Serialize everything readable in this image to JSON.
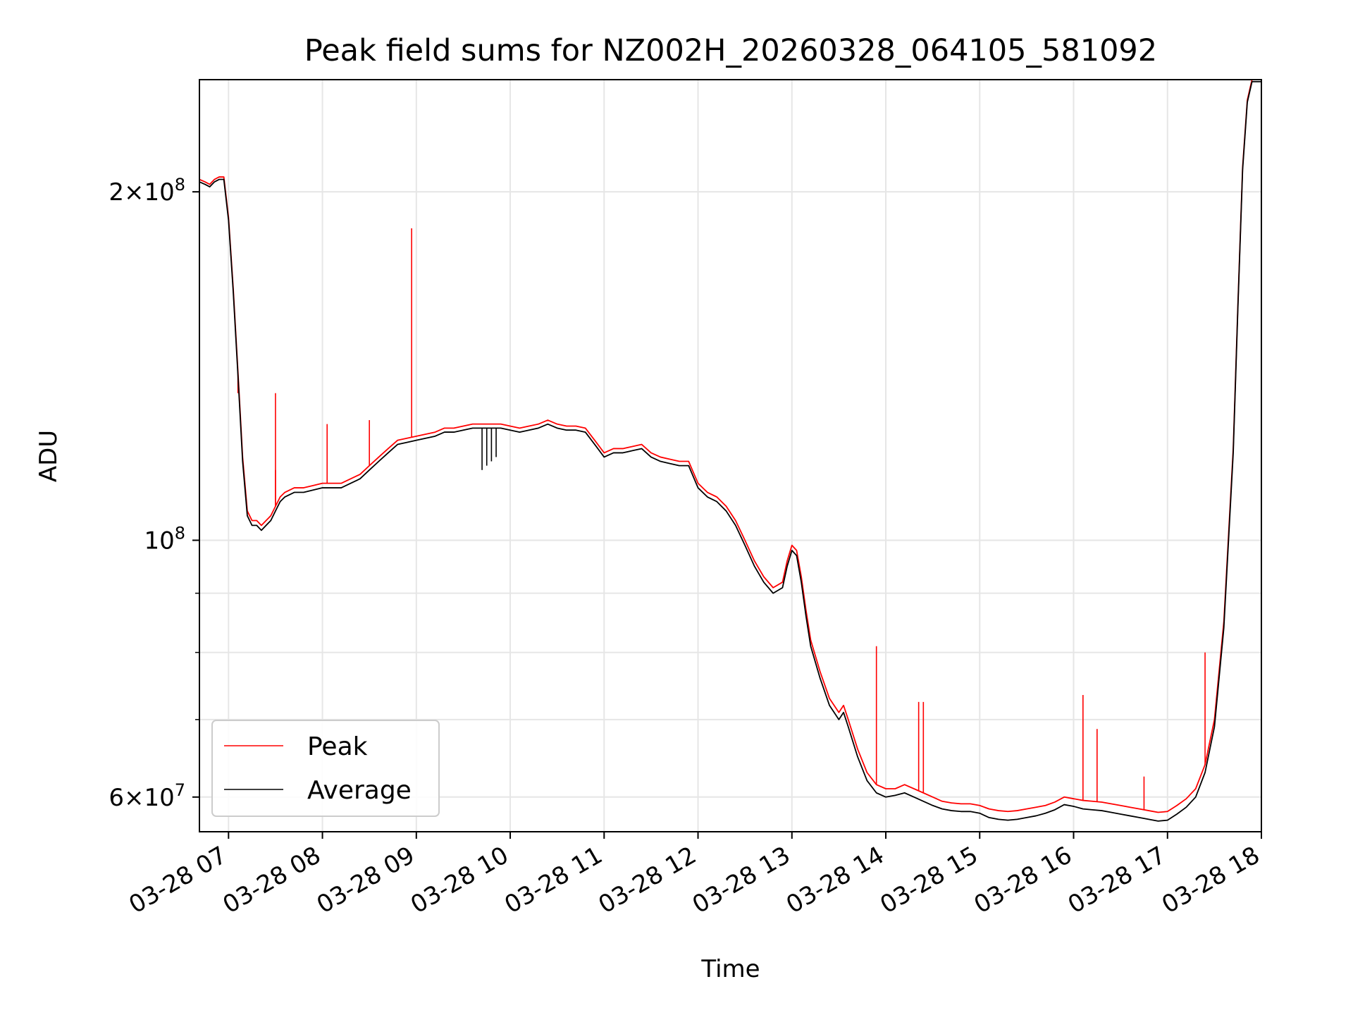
{
  "chart_data": {
    "type": "line",
    "title": "Peak field sums for NZ002H_20260328_064105_581092",
    "xlabel": "Time",
    "ylabel": "ADU",
    "yscale": "log",
    "ylim": [
      56000000,
      250000000
    ],
    "xlim_hours": [
      6.69,
      18.0
    ],
    "grid": true,
    "legend_position": "lower-left",
    "x_ticks": [
      {
        "value": 7,
        "label": "03-28 07"
      },
      {
        "value": 8,
        "label": "03-28 08"
      },
      {
        "value": 9,
        "label": "03-28 09"
      },
      {
        "value": 10,
        "label": "03-28 10"
      },
      {
        "value": 11,
        "label": "03-28 11"
      },
      {
        "value": 12,
        "label": "03-28 12"
      },
      {
        "value": 13,
        "label": "03-28 13"
      },
      {
        "value": 14,
        "label": "03-28 14"
      },
      {
        "value": 15,
        "label": "03-28 15"
      },
      {
        "value": 16,
        "label": "03-28 16"
      },
      {
        "value": 17,
        "label": "03-28 17"
      },
      {
        "value": 18,
        "label": "03-28 18"
      }
    ],
    "y_ticks": [
      {
        "value": 60000000,
        "mantissa": "6",
        "exponent": "7"
      },
      {
        "value": 100000000,
        "mantissa": "",
        "exponent": "8"
      },
      {
        "value": 200000000,
        "mantissa": "2",
        "exponent": "8"
      }
    ],
    "y_minor_ticks": [
      70000000,
      80000000,
      90000000
    ],
    "series": [
      {
        "name": "Peak",
        "color": "#ff0000",
        "points": [
          [
            6.69,
            205
          ],
          [
            6.75,
            204
          ],
          [
            6.8,
            203
          ],
          [
            6.85,
            205
          ],
          [
            6.9,
            206
          ],
          [
            6.95,
            206
          ],
          [
            7.0,
            190
          ],
          [
            7.05,
            165
          ],
          [
            7.1,
            140
          ],
          [
            7.15,
            118
          ],
          [
            7.2,
            106
          ],
          [
            7.25,
            104
          ],
          [
            7.3,
            104
          ],
          [
            7.35,
            103
          ],
          [
            7.4,
            104
          ],
          [
            7.45,
            105
          ],
          [
            7.5,
            107
          ],
          [
            7.55,
            109
          ],
          [
            7.6,
            110
          ],
          [
            7.7,
            111
          ],
          [
            7.8,
            111
          ],
          [
            7.9,
            111.5
          ],
          [
            8.0,
            112
          ],
          [
            8.1,
            112
          ],
          [
            8.2,
            112
          ],
          [
            8.3,
            113
          ],
          [
            8.4,
            114
          ],
          [
            8.5,
            116
          ],
          [
            8.6,
            118
          ],
          [
            8.7,
            120
          ],
          [
            8.8,
            122
          ],
          [
            8.9,
            122.5
          ],
          [
            9.0,
            123
          ],
          [
            9.1,
            123.5
          ],
          [
            9.2,
            124
          ],
          [
            9.3,
            125
          ],
          [
            9.4,
            125
          ],
          [
            9.5,
            125.5
          ],
          [
            9.6,
            126
          ],
          [
            9.7,
            126
          ],
          [
            9.8,
            126
          ],
          [
            9.9,
            126
          ],
          [
            10.0,
            125.5
          ],
          [
            10.1,
            125
          ],
          [
            10.2,
            125.5
          ],
          [
            10.3,
            126
          ],
          [
            10.4,
            127
          ],
          [
            10.5,
            126
          ],
          [
            10.6,
            125.5
          ],
          [
            10.7,
            125.5
          ],
          [
            10.8,
            125
          ],
          [
            10.9,
            122
          ],
          [
            11.0,
            119
          ],
          [
            11.1,
            120
          ],
          [
            11.2,
            120
          ],
          [
            11.3,
            120.5
          ],
          [
            11.4,
            121
          ],
          [
            11.5,
            119
          ],
          [
            11.6,
            118
          ],
          [
            11.7,
            117.5
          ],
          [
            11.8,
            117
          ],
          [
            11.9,
            117
          ],
          [
            12.0,
            112
          ],
          [
            12.1,
            110
          ],
          [
            12.2,
            109
          ],
          [
            12.3,
            107
          ],
          [
            12.4,
            104
          ],
          [
            12.5,
            100
          ],
          [
            12.6,
            96
          ],
          [
            12.7,
            93
          ],
          [
            12.8,
            91
          ],
          [
            12.9,
            92
          ],
          [
            12.95,
            96
          ],
          [
            13.0,
            99
          ],
          [
            13.05,
            98
          ],
          [
            13.1,
            93
          ],
          [
            13.15,
            87
          ],
          [
            13.2,
            82
          ],
          [
            13.3,
            77
          ],
          [
            13.4,
            73
          ],
          [
            13.5,
            71
          ],
          [
            13.55,
            72
          ],
          [
            13.6,
            70
          ],
          [
            13.7,
            66
          ],
          [
            13.8,
            63
          ],
          [
            13.9,
            61.5
          ],
          [
            14.0,
            61
          ],
          [
            14.1,
            61
          ],
          [
            14.2,
            61.5
          ],
          [
            14.3,
            61
          ],
          [
            14.4,
            60.5
          ],
          [
            14.5,
            60
          ],
          [
            14.6,
            59.5
          ],
          [
            14.7,
            59.3
          ],
          [
            14.8,
            59.2
          ],
          [
            14.9,
            59.2
          ],
          [
            15.0,
            59
          ],
          [
            15.1,
            58.6
          ],
          [
            15.2,
            58.4
          ],
          [
            15.3,
            58.3
          ],
          [
            15.4,
            58.4
          ],
          [
            15.5,
            58.6
          ],
          [
            15.6,
            58.8
          ],
          [
            15.7,
            59
          ],
          [
            15.8,
            59.4
          ],
          [
            15.9,
            60
          ],
          [
            16.0,
            59.8
          ],
          [
            16.1,
            59.6
          ],
          [
            16.2,
            59.5
          ],
          [
            16.3,
            59.4
          ],
          [
            16.4,
            59.2
          ],
          [
            16.5,
            59
          ],
          [
            16.6,
            58.8
          ],
          [
            16.7,
            58.6
          ],
          [
            16.8,
            58.4
          ],
          [
            16.9,
            58.2
          ],
          [
            17.0,
            58.3
          ],
          [
            17.1,
            59
          ],
          [
            17.2,
            59.8
          ],
          [
            17.3,
            61
          ],
          [
            17.4,
            64
          ],
          [
            17.5,
            70
          ],
          [
            17.6,
            85
          ],
          [
            17.7,
            120
          ],
          [
            17.75,
            160
          ],
          [
            17.8,
            210
          ],
          [
            17.85,
            240
          ],
          [
            17.9,
            250
          ],
          [
            18.0,
            250
          ]
        ],
        "spikes": [
          [
            7.1,
            134
          ],
          [
            7.5,
            134
          ],
          [
            7.5,
            115
          ],
          [
            8.05,
            126
          ],
          [
            8.5,
            127
          ],
          [
            8.95,
            186
          ],
          [
            13.9,
            81
          ],
          [
            14.35,
            72.5
          ],
          [
            14.4,
            72.5
          ],
          [
            16.1,
            73.5
          ],
          [
            16.25,
            68.7
          ],
          [
            16.75,
            62.5
          ],
          [
            17.4,
            80
          ]
        ]
      },
      {
        "name": "Average",
        "color": "#000000",
        "points": [
          [
            6.69,
            204
          ],
          [
            6.75,
            203
          ],
          [
            6.8,
            202
          ],
          [
            6.85,
            204
          ],
          [
            6.9,
            205
          ],
          [
            6.95,
            205
          ],
          [
            7.0,
            189
          ],
          [
            7.05,
            164
          ],
          [
            7.1,
            139
          ],
          [
            7.15,
            117
          ],
          [
            7.2,
            105
          ],
          [
            7.25,
            103
          ],
          [
            7.3,
            103
          ],
          [
            7.35,
            102
          ],
          [
            7.4,
            103
          ],
          [
            7.45,
            104
          ],
          [
            7.5,
            106
          ],
          [
            7.55,
            108
          ],
          [
            7.6,
            109
          ],
          [
            7.7,
            110
          ],
          [
            7.8,
            110
          ],
          [
            7.9,
            110.5
          ],
          [
            8.0,
            111
          ],
          [
            8.1,
            111
          ],
          [
            8.2,
            111
          ],
          [
            8.3,
            112
          ],
          [
            8.4,
            113
          ],
          [
            8.5,
            115
          ],
          [
            8.6,
            117
          ],
          [
            8.7,
            119
          ],
          [
            8.8,
            121
          ],
          [
            8.9,
            121.5
          ],
          [
            9.0,
            122
          ],
          [
            9.1,
            122.5
          ],
          [
            9.2,
            123
          ],
          [
            9.3,
            124
          ],
          [
            9.4,
            124
          ],
          [
            9.5,
            124.5
          ],
          [
            9.6,
            125
          ],
          [
            9.7,
            125
          ],
          [
            9.8,
            125
          ],
          [
            9.9,
            125
          ],
          [
            10.0,
            124.5
          ],
          [
            10.1,
            124
          ],
          [
            10.2,
            124.5
          ],
          [
            10.3,
            125
          ],
          [
            10.4,
            126
          ],
          [
            10.5,
            125
          ],
          [
            10.6,
            124.5
          ],
          [
            10.7,
            124.5
          ],
          [
            10.8,
            124
          ],
          [
            10.9,
            121
          ],
          [
            11.0,
            118
          ],
          [
            11.1,
            119
          ],
          [
            11.2,
            119
          ],
          [
            11.3,
            119.5
          ],
          [
            11.4,
            120
          ],
          [
            11.5,
            118
          ],
          [
            11.6,
            117
          ],
          [
            11.7,
            116.5
          ],
          [
            11.8,
            116
          ],
          [
            11.9,
            116
          ],
          [
            12.0,
            111
          ],
          [
            12.1,
            109
          ],
          [
            12.2,
            108
          ],
          [
            12.3,
            106
          ],
          [
            12.4,
            103
          ],
          [
            12.5,
            99
          ],
          [
            12.6,
            95
          ],
          [
            12.7,
            92
          ],
          [
            12.8,
            90
          ],
          [
            12.9,
            91
          ],
          [
            12.95,
            95
          ],
          [
            13.0,
            98
          ],
          [
            13.05,
            97
          ],
          [
            13.1,
            92
          ],
          [
            13.15,
            86
          ],
          [
            13.2,
            81
          ],
          [
            13.3,
            76
          ],
          [
            13.4,
            72
          ],
          [
            13.5,
            70
          ],
          [
            13.55,
            71
          ],
          [
            13.6,
            69
          ],
          [
            13.7,
            65
          ],
          [
            13.8,
            62
          ],
          [
            13.9,
            60.5
          ],
          [
            14.0,
            60
          ],
          [
            14.1,
            60.2
          ],
          [
            14.2,
            60.5
          ],
          [
            14.3,
            60
          ],
          [
            14.4,
            59.5
          ],
          [
            14.5,
            59
          ],
          [
            14.6,
            58.6
          ],
          [
            14.7,
            58.4
          ],
          [
            14.8,
            58.3
          ],
          [
            14.9,
            58.3
          ],
          [
            15.0,
            58.1
          ],
          [
            15.1,
            57.6
          ],
          [
            15.2,
            57.4
          ],
          [
            15.3,
            57.3
          ],
          [
            15.4,
            57.4
          ],
          [
            15.5,
            57.6
          ],
          [
            15.6,
            57.8
          ],
          [
            15.7,
            58.1
          ],
          [
            15.8,
            58.5
          ],
          [
            15.9,
            59.1
          ],
          [
            16.0,
            58.9
          ],
          [
            16.1,
            58.6
          ],
          [
            16.2,
            58.5
          ],
          [
            16.3,
            58.4
          ],
          [
            16.4,
            58.2
          ],
          [
            16.5,
            58
          ],
          [
            16.6,
            57.8
          ],
          [
            16.7,
            57.6
          ],
          [
            16.8,
            57.4
          ],
          [
            16.9,
            57.2
          ],
          [
            17.0,
            57.3
          ],
          [
            17.1,
            58
          ],
          [
            17.2,
            58.8
          ],
          [
            17.3,
            60
          ],
          [
            17.4,
            63
          ],
          [
            17.5,
            69
          ],
          [
            17.6,
            84
          ],
          [
            17.7,
            119
          ],
          [
            17.75,
            159
          ],
          [
            17.8,
            209
          ],
          [
            17.85,
            239
          ],
          [
            17.9,
            249
          ],
          [
            18.0,
            249
          ]
        ],
        "spikes": [
          [
            9.7,
            115
          ],
          [
            9.75,
            116
          ],
          [
            9.8,
            117
          ],
          [
            9.85,
            118
          ]
        ]
      }
    ],
    "legend": [
      {
        "label": "Peak",
        "color": "#ff0000"
      },
      {
        "label": "Average",
        "color": "#000000"
      }
    ]
  }
}
